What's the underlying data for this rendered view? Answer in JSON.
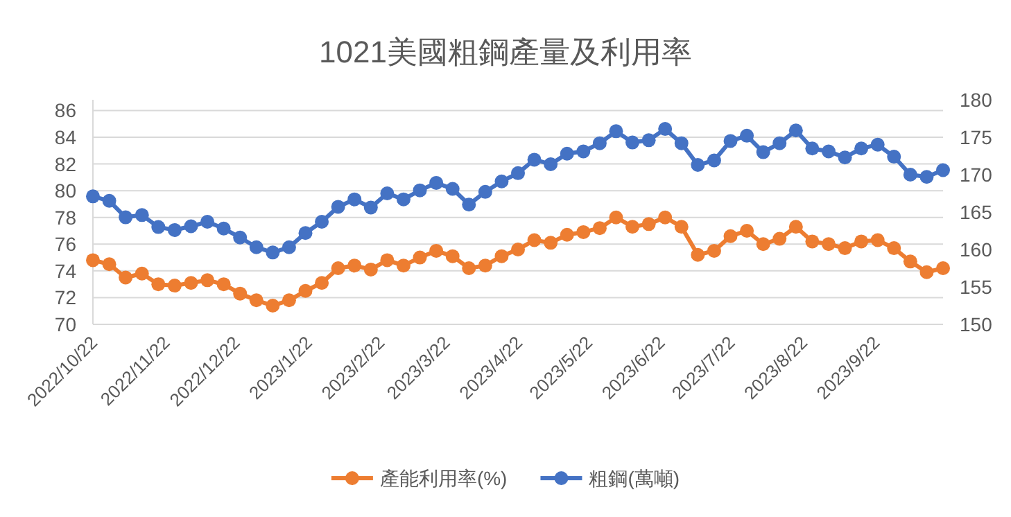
{
  "chart_data": {
    "type": "line",
    "title": "1021美國粗鋼產量及利用率",
    "x": [
      "2022-10-22",
      "2022-10-29",
      "2022-11-05",
      "2022-11-12",
      "2022-11-19",
      "2022-11-26",
      "2022-12-03",
      "2022-12-10",
      "2022-12-17",
      "2022-12-24",
      "2022-12-31",
      "2023-01-07",
      "2023-01-14",
      "2023-01-21",
      "2023-01-28",
      "2023-02-04",
      "2023-02-11",
      "2023-02-18",
      "2023-02-25",
      "2023-03-04",
      "2023-03-11",
      "2023-03-18",
      "2023-03-25",
      "2023-04-01",
      "2023-04-08",
      "2023-04-15",
      "2023-04-22",
      "2023-04-29",
      "2023-05-06",
      "2023-05-13",
      "2023-05-20",
      "2023-05-27",
      "2023-06-03",
      "2023-06-10",
      "2023-06-17",
      "2023-06-24",
      "2023-07-01",
      "2023-07-08",
      "2023-07-15",
      "2023-07-22",
      "2023-07-29",
      "2023-08-05",
      "2023-08-12",
      "2023-08-19",
      "2023-08-26",
      "2023-09-02",
      "2023-09-09",
      "2023-09-16",
      "2023-09-23",
      "2023-09-30",
      "2023-10-07",
      "2023-10-14",
      "2023-10-21"
    ],
    "xlim": [
      "2022-10-22",
      "2023-10-21"
    ],
    "xticks": [
      {
        "value": "2022-10-22",
        "label": "2022/10/22"
      },
      {
        "value": "2022-11-22",
        "label": "2022/11/22"
      },
      {
        "value": "2022-12-22",
        "label": "2022/12/22"
      },
      {
        "value": "2023-01-22",
        "label": "2023/1/22"
      },
      {
        "value": "2023-02-22",
        "label": "2023/2/22"
      },
      {
        "value": "2023-03-22",
        "label": "2023/3/22"
      },
      {
        "value": "2023-04-22",
        "label": "2023/4/22"
      },
      {
        "value": "2023-05-22",
        "label": "2023/5/22"
      },
      {
        "value": "2023-06-22",
        "label": "2023/6/22"
      },
      {
        "value": "2023-07-22",
        "label": "2023/7/22"
      },
      {
        "value": "2023-08-22",
        "label": "2023/8/22"
      },
      {
        "value": "2023-09-22",
        "label": "2023/9/22"
      }
    ],
    "ylim": [
      70,
      86.8
    ],
    "yticks": [
      70,
      72,
      74,
      76,
      78,
      80,
      82,
      84,
      86
    ],
    "y2lim": [
      150,
      180
    ],
    "y2ticks": [
      150,
      155,
      160,
      165,
      170,
      175,
      180
    ],
    "grid": "y",
    "legend": "bottom",
    "marker": "circle",
    "series": [
      {
        "name": "產能利用率(%)",
        "color": "#ed7d31",
        "values": [
          74.8,
          74.5,
          73.5,
          73.8,
          73.0,
          72.9,
          73.1,
          73.3,
          73.0,
          72.3,
          71.8,
          71.4,
          71.8,
          72.5,
          73.1,
          74.2,
          74.4,
          74.1,
          74.8,
          74.4,
          75.0,
          75.5,
          75.1,
          74.2,
          74.4,
          75.1,
          75.6,
          76.3,
          76.1,
          76.7,
          76.9,
          77.2,
          78.0,
          77.3,
          77.5,
          78.0,
          77.3,
          75.2,
          75.5,
          76.6,
          77.0,
          76.0,
          76.4,
          77.3,
          76.2,
          76.0,
          75.7,
          76.2,
          76.3,
          75.7,
          74.7,
          73.9,
          74.2
        ]
      },
      {
        "name": "粗鋼(萬噸)",
        "color": "#4472c4",
        "axis": "y2",
        "values": [
          167.1,
          166.5,
          164.3,
          164.6,
          163.0,
          162.6,
          163.1,
          163.7,
          162.8,
          161.6,
          160.3,
          159.6,
          160.3,
          162.2,
          163.7,
          165.7,
          166.7,
          165.6,
          167.5,
          166.7,
          167.9,
          168.9,
          168.1,
          166.0,
          167.7,
          169.1,
          170.2,
          172.0,
          171.4,
          172.8,
          173.1,
          174.2,
          175.8,
          174.3,
          174.6,
          176.1,
          174.2,
          171.3,
          171.9,
          174.5,
          175.2,
          173.0,
          174.2,
          175.9,
          173.5,
          173.1,
          172.3,
          173.5,
          174.0,
          172.4,
          170.0,
          169.7,
          170.6
        ]
      }
    ]
  }
}
